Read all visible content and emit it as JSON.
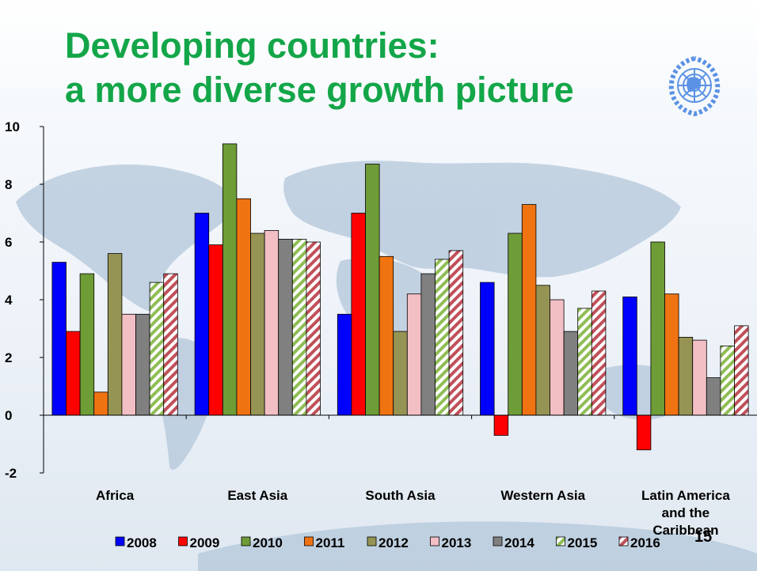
{
  "slide": {
    "title_line1": "Developing countries:",
    "title_line2": "a more diverse growth picture",
    "page_number": "15",
    "title_color": "#13a649",
    "logo": "un-emblem-icon"
  },
  "chart_data": {
    "type": "bar",
    "title": "",
    "xlabel": "",
    "ylabel": "",
    "ylim": [
      -2,
      10
    ],
    "yticks": [
      "-2",
      "0",
      "2",
      "4",
      "6",
      "8",
      "10"
    ],
    "grid": false,
    "legend_position": "bottom",
    "categories": [
      "Africa",
      "East Asia",
      "South Asia",
      "Western Asia",
      "Latin America and the Caribbean"
    ],
    "category_lines": [
      [
        "Africa"
      ],
      [
        "East Asia"
      ],
      [
        "South Asia"
      ],
      [
        "Western Asia"
      ],
      [
        "Latin America",
        "and the",
        "Caribbean"
      ]
    ],
    "series": [
      {
        "name": "2008",
        "color": "#0000ff",
        "pattern": "solid",
        "values": [
          5.3,
          7.0,
          3.5,
          4.6,
          4.1
        ]
      },
      {
        "name": "2009",
        "color": "#ff0000",
        "pattern": "solid",
        "values": [
          2.9,
          5.9,
          7.0,
          -0.7,
          -1.2
        ]
      },
      {
        "name": "2010",
        "color": "#6e9c37",
        "pattern": "solid",
        "values": [
          4.9,
          9.4,
          8.7,
          6.3,
          6.0
        ]
      },
      {
        "name": "2011",
        "color": "#f07312",
        "pattern": "solid",
        "values": [
          0.8,
          7.5,
          5.5,
          7.3,
          4.2
        ]
      },
      {
        "name": "2012",
        "color": "#969454",
        "pattern": "solid",
        "values": [
          5.6,
          6.3,
          2.9,
          4.5,
          2.7
        ]
      },
      {
        "name": "2013",
        "color": "#f2bfc5",
        "pattern": "solid",
        "values": [
          3.5,
          6.4,
          4.2,
          4.0,
          2.6
        ]
      },
      {
        "name": "2014",
        "color": "#808080",
        "pattern": "solid",
        "values": [
          3.5,
          6.1,
          4.9,
          2.9,
          1.3
        ]
      },
      {
        "name": "2015",
        "color": "#8fbd55",
        "pattern": "striped",
        "values": [
          4.6,
          6.1,
          5.4,
          3.7,
          2.4
        ]
      },
      {
        "name": "2016",
        "color": "#c0505a",
        "pattern": "striped",
        "values": [
          4.9,
          6.0,
          5.7,
          4.3,
          3.1
        ]
      }
    ]
  }
}
